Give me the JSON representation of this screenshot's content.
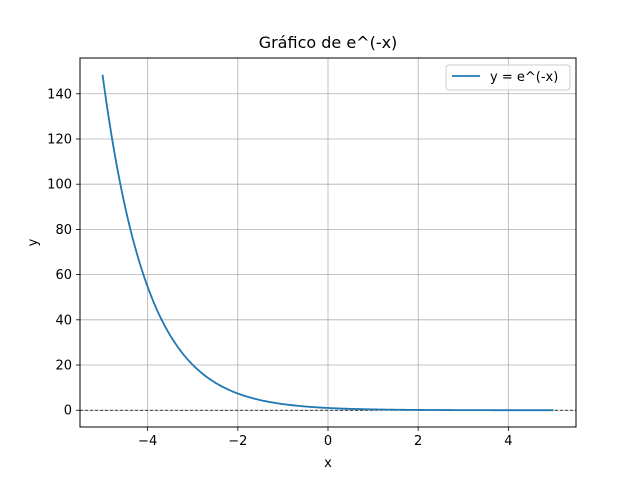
{
  "chart_data": {
    "type": "line",
    "title": "Gráfico de e^(-x)",
    "xlabel": "x",
    "ylabel": "y",
    "xlim": [
      -5.5,
      5.5
    ],
    "ylim": [
      -7.42,
      155.83
    ],
    "grid": true,
    "legend_position": "top-right",
    "x_ticks": [
      -4,
      -2,
      0,
      2,
      4
    ],
    "x_tick_labels": [
      "−4",
      "−2",
      "0",
      "2",
      "4"
    ],
    "y_ticks": [
      0,
      20,
      40,
      60,
      80,
      100,
      120,
      140
    ],
    "y_tick_labels": [
      "0",
      "20",
      "40",
      "60",
      "80",
      "100",
      "120",
      "140"
    ],
    "series": [
      {
        "name": "y = e^(-x)",
        "color": "#1f77b4",
        "function": "exp(-x)",
        "x_range": [
          -5,
          5
        ],
        "sample_points": [
          {
            "x": -5,
            "y": 148.41
          },
          {
            "x": -4,
            "y": 54.6
          },
          {
            "x": -3,
            "y": 20.09
          },
          {
            "x": -2,
            "y": 7.39
          },
          {
            "x": -1,
            "y": 2.72
          },
          {
            "x": 0,
            "y": 1.0
          },
          {
            "x": 1,
            "y": 0.37
          },
          {
            "x": 2,
            "y": 0.14
          },
          {
            "x": 3,
            "y": 0.05
          },
          {
            "x": 4,
            "y": 0.02
          },
          {
            "x": 5,
            "y": 0.01
          }
        ]
      }
    ],
    "reference_lines": [
      {
        "axis": "y",
        "value": 0,
        "color": "#000000",
        "style": "dashed"
      }
    ]
  }
}
